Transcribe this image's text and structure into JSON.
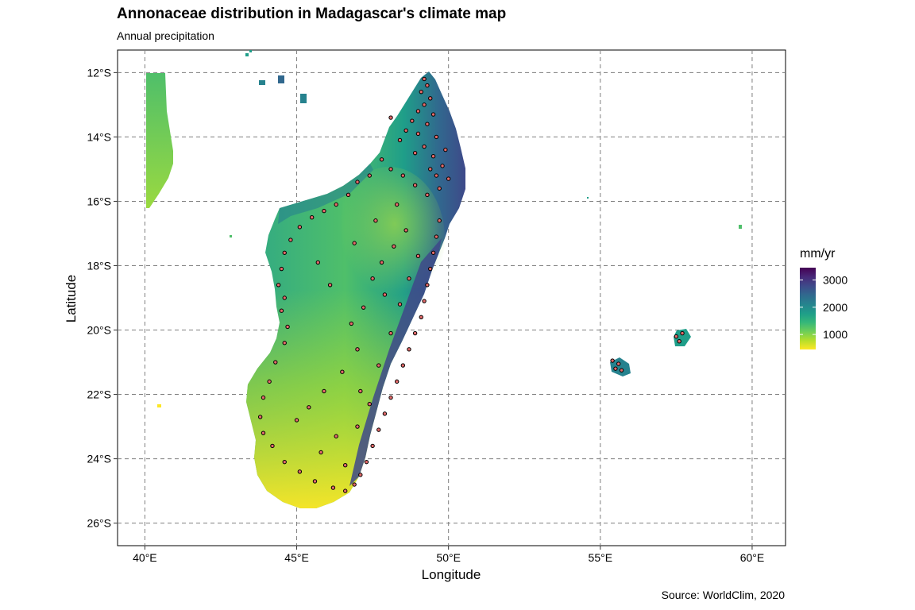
{
  "title": "Annonaceae distribution in Madagascar's climate map",
  "subtitle": "Annual precipitation",
  "caption": "Source: WorldClim, 2020",
  "chart_data": {
    "type": "map",
    "xlabel": "Longitude",
    "ylabel": "Latitude",
    "xlim": [
      39.1,
      61.1
    ],
    "ylim": [
      -26.7,
      -11.3
    ],
    "x_ticks": [
      {
        "value": 40,
        "label": "40°E"
      },
      {
        "value": 45,
        "label": "45°E"
      },
      {
        "value": 50,
        "label": "50°E"
      },
      {
        "value": 55,
        "label": "55°E"
      },
      {
        "value": 60,
        "label": "60°E"
      }
    ],
    "y_ticks": [
      {
        "value": -12,
        "label": "12°S"
      },
      {
        "value": -14,
        "label": "14°S"
      },
      {
        "value": -16,
        "label": "16°S"
      },
      {
        "value": -18,
        "label": "18°S"
      },
      {
        "value": -20,
        "label": "20°S"
      },
      {
        "value": -22,
        "label": "22°S"
      },
      {
        "value": -24,
        "label": "24°S"
      },
      {
        "value": -26,
        "label": "26°S"
      }
    ],
    "grid": "dashed major gridlines",
    "legend": {
      "title": "mm/yr",
      "placement": "right",
      "min": 450,
      "max": 3450,
      "breaks": [
        1000,
        2000,
        3000
      ],
      "break_labels": [
        "1000",
        "2000",
        "3000"
      ],
      "colors": [
        "#fde725",
        "#b5de2b",
        "#6ece58",
        "#35b779",
        "#1f9e89",
        "#26828e",
        "#31688e",
        "#3e4989",
        "#482878",
        "#440154"
      ]
    },
    "land_color_stops": {
      "northwest": "#2a9a88",
      "north_interior": "#26828e",
      "central_west": "#2fa885",
      "central_highlands": "#6ece58",
      "southwest": "#c2df24",
      "south": "#e8e325",
      "east_coast": "#3e4989",
      "northeast_coast": "#31688e"
    },
    "points_style": {
      "fill": "#e36a6a",
      "stroke": "#000000"
    },
    "islands": [
      {
        "name": "Mozambique Channel strip",
        "lon": [
          40.0,
          40.9
        ],
        "lat": [
          -16.2,
          -12.0
        ],
        "color": "#7ed34f"
      },
      {
        "name": "Comoros small islets",
        "lon": [
          43.3,
          44.9
        ],
        "lat": [
          -12.9,
          -11.4
        ],
        "color": "#2a9a88"
      },
      {
        "name": "Reunion",
        "lon": [
          55.2,
          55.8
        ],
        "lat": [
          -21.4,
          -20.9
        ],
        "color": "#26828e"
      },
      {
        "name": "Mauritius",
        "lon": [
          57.3,
          57.8
        ],
        "lat": [
          -20.5,
          -20.0
        ],
        "color": "#2a9a88"
      }
    ],
    "occurrences": [
      [
        49.2,
        -12.2
      ],
      [
        49.3,
        -12.4
      ],
      [
        49.1,
        -12.6
      ],
      [
        49.4,
        -12.8
      ],
      [
        49.2,
        -13.0
      ],
      [
        49.0,
        -13.2
      ],
      [
        49.5,
        -13.3
      ],
      [
        48.8,
        -13.5
      ],
      [
        49.3,
        -13.6
      ],
      [
        48.6,
        -13.8
      ],
      [
        49.0,
        -13.9
      ],
      [
        49.6,
        -14.0
      ],
      [
        48.4,
        -14.1
      ],
      [
        49.2,
        -14.3
      ],
      [
        48.9,
        -14.5
      ],
      [
        49.5,
        -14.6
      ],
      [
        49.8,
        -14.9
      ],
      [
        49.6,
        -15.2
      ],
      [
        50.0,
        -15.3
      ],
      [
        49.7,
        -15.6
      ],
      [
        49.3,
        -15.8
      ],
      [
        48.9,
        -15.5
      ],
      [
        48.5,
        -15.2
      ],
      [
        48.1,
        -15.0
      ],
      [
        47.8,
        -14.7
      ],
      [
        47.4,
        -15.2
      ],
      [
        47.0,
        -15.4
      ],
      [
        46.7,
        -15.8
      ],
      [
        46.3,
        -16.1
      ],
      [
        45.9,
        -16.3
      ],
      [
        45.5,
        -16.5
      ],
      [
        45.1,
        -16.8
      ],
      [
        44.8,
        -17.2
      ],
      [
        44.6,
        -17.6
      ],
      [
        44.5,
        -18.1
      ],
      [
        44.4,
        -18.6
      ],
      [
        44.6,
        -19.0
      ],
      [
        44.5,
        -19.4
      ],
      [
        44.7,
        -19.9
      ],
      [
        44.6,
        -20.4
      ],
      [
        44.3,
        -21.0
      ],
      [
        44.1,
        -21.6
      ],
      [
        43.9,
        -22.1
      ],
      [
        43.8,
        -22.7
      ],
      [
        43.9,
        -23.2
      ],
      [
        44.2,
        -23.6
      ],
      [
        44.6,
        -24.1
      ],
      [
        45.1,
        -24.4
      ],
      [
        45.6,
        -24.7
      ],
      [
        46.2,
        -24.9
      ],
      [
        46.6,
        -25.0
      ],
      [
        46.9,
        -24.8
      ],
      [
        47.1,
        -24.5
      ],
      [
        47.3,
        -24.1
      ],
      [
        47.5,
        -23.6
      ],
      [
        47.7,
        -23.1
      ],
      [
        47.9,
        -22.6
      ],
      [
        48.1,
        -22.1
      ],
      [
        48.3,
        -21.6
      ],
      [
        48.5,
        -21.1
      ],
      [
        48.7,
        -20.6
      ],
      [
        48.9,
        -20.1
      ],
      [
        49.1,
        -19.6
      ],
      [
        49.2,
        -19.1
      ],
      [
        49.3,
        -18.6
      ],
      [
        49.4,
        -18.1
      ],
      [
        49.5,
        -17.6
      ],
      [
        49.6,
        -17.1
      ],
      [
        49.7,
        -16.6
      ],
      [
        48.2,
        -17.4
      ],
      [
        47.8,
        -17.9
      ],
      [
        47.5,
        -18.4
      ],
      [
        47.9,
        -18.9
      ],
      [
        47.2,
        -19.3
      ],
      [
        46.8,
        -19.8
      ],
      [
        47.0,
        -20.6
      ],
      [
        46.5,
        -21.3
      ],
      [
        45.9,
        -21.9
      ],
      [
        45.4,
        -22.4
      ],
      [
        45.0,
        -22.8
      ],
      [
        46.3,
        -23.3
      ],
      [
        45.8,
        -23.8
      ],
      [
        47.1,
        -21.9
      ],
      [
        46.1,
        -18.6
      ],
      [
        45.7,
        -17.9
      ],
      [
        46.9,
        -17.3
      ],
      [
        47.6,
        -16.6
      ],
      [
        48.3,
        -16.1
      ],
      [
        48.6,
        -16.9
      ],
      [
        49.0,
        -17.7
      ],
      [
        48.7,
        -18.4
      ],
      [
        48.4,
        -19.2
      ],
      [
        48.1,
        -20.1
      ],
      [
        47.7,
        -21.1
      ],
      [
        47.4,
        -22.3
      ],
      [
        47.0,
        -23.0
      ],
      [
        46.6,
        -24.2
      ],
      [
        49.9,
        -14.4
      ],
      [
        49.4,
        -15.0
      ],
      [
        48.1,
        -13.4
      ],
      [
        55.4,
        -20.95
      ],
      [
        55.6,
        -21.05
      ],
      [
        55.5,
        -21.2
      ],
      [
        55.7,
        -21.25
      ],
      [
        57.5,
        -20.2
      ],
      [
        57.6,
        -20.35
      ],
      [
        57.7,
        -20.1
      ]
    ]
  }
}
